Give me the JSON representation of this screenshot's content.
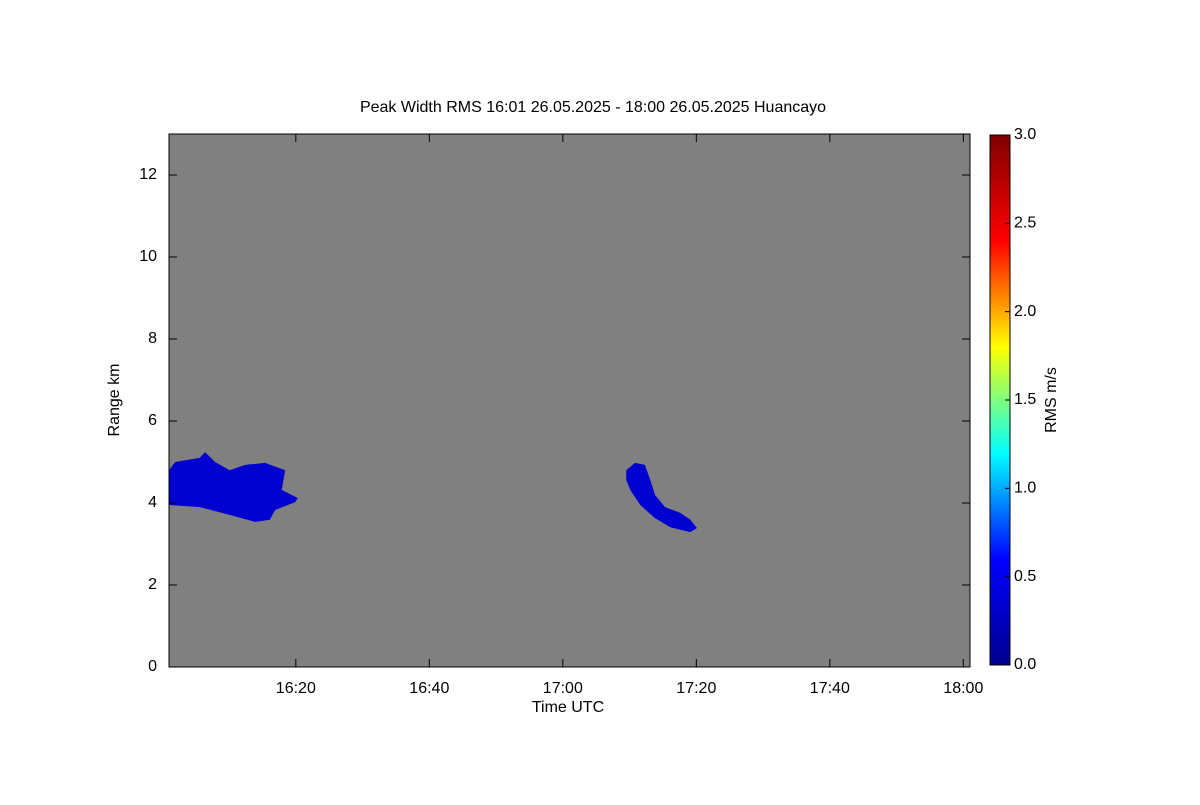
{
  "chart_data": {
    "type": "heatmap",
    "title": "Peak Width RMS   16:01 26.05.2025 - 18:00 26.05.2025 Huancayo",
    "x_label": "Time UTC",
    "y_label": "Range km",
    "xlim": [
      961,
      1081
    ],
    "xticks": [
      {
        "value": 980,
        "label": "16:20"
      },
      {
        "value": 1000,
        "label": "16:40"
      },
      {
        "value": 1020,
        "label": "17:00"
      },
      {
        "value": 1040,
        "label": "17:20"
      },
      {
        "value": 1060,
        "label": "17:40"
      },
      {
        "value": 1080,
        "label": "18:00"
      }
    ],
    "ylim": [
      0,
      13
    ],
    "yticks": [
      0,
      2,
      4,
      6,
      8,
      10,
      12
    ],
    "nodata_color": "#808080",
    "colorbar": {
      "label": "RMS m/s",
      "lim": [
        0,
        3
      ],
      "ticks": [
        {
          "value": 0,
          "label": "0.0"
        },
        {
          "value": 0.5,
          "label": "0.5"
        },
        {
          "value": 1,
          "label": "1.0"
        },
        {
          "value": 1.5,
          "label": "1.5"
        },
        {
          "value": 2,
          "label": "2.0"
        },
        {
          "value": 2.5,
          "label": "2.5"
        },
        {
          "value": 3,
          "label": "3.0"
        }
      ],
      "colors": [
        "#00008f",
        "#0000ff",
        "#00ffff",
        "#ffff00",
        "#ff0000",
        "#800000"
      ]
    },
    "regions": [
      {
        "value": 0.35,
        "x": [
          961,
          961.9,
          965.6,
          966.4,
          967.9,
          970.1,
          972.4,
          975.4,
          978.4,
          977.9,
          980.3,
          979.9,
          976.9,
          976.1,
          973.9,
          970.1,
          965.6,
          961
        ],
        "y": [
          4.8,
          5.0,
          5.1,
          5.24,
          5.0,
          4.8,
          4.93,
          4.98,
          4.8,
          4.32,
          4.12,
          4.02,
          3.83,
          3.59,
          3.54,
          3.71,
          3.9,
          3.95
        ]
      },
      {
        "value": 0.35,
        "x": [
          1029.5,
          1030.8,
          1032.3,
          1033.1,
          1033.8,
          1035.3,
          1037.6,
          1039.1,
          1040.1,
          1039.1,
          1036.1,
          1033.8,
          1031.6,
          1030.1,
          1029.5
        ],
        "y": [
          4.8,
          4.98,
          4.93,
          4.56,
          4.2,
          3.9,
          3.76,
          3.59,
          3.39,
          3.29,
          3.41,
          3.63,
          3.95,
          4.32,
          4.56
        ]
      }
    ]
  }
}
